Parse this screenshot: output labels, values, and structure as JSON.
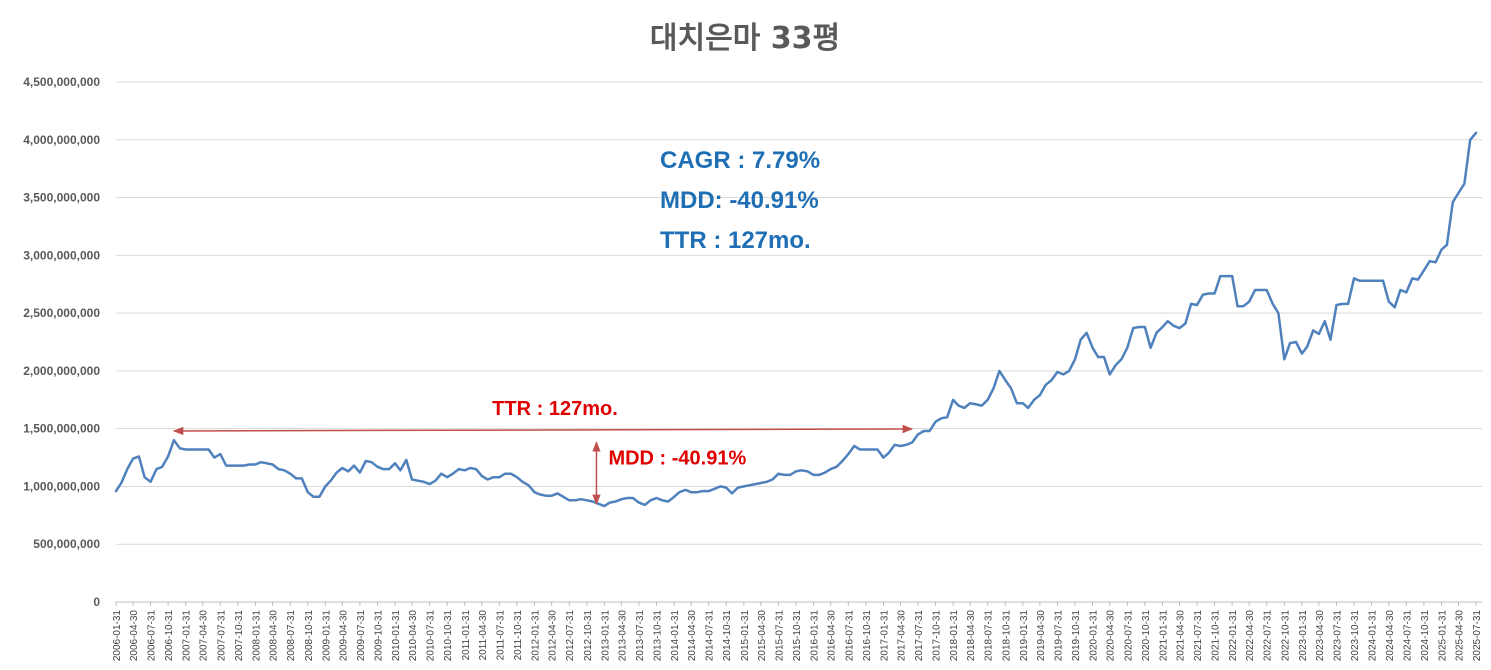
{
  "chart_data": {
    "type": "line",
    "title": "대치은마 33평",
    "xlabel": "",
    "ylabel": "",
    "ylim": [
      0,
      4500000000
    ],
    "y_ticks": [
      "0",
      "500,000,000",
      "1,000,000,000",
      "1,500,000,000",
      "2,000,000,000",
      "2,500,000,000",
      "3,000,000,000",
      "3,500,000,000",
      "4,000,000,000",
      "4,500,000,000"
    ],
    "y_tick_values": [
      0,
      500000000,
      1000000000,
      1500000000,
      2000000000,
      2500000000,
      3000000000,
      3500000000,
      4000000000,
      4500000000
    ],
    "x_ticks": [
      "2006-01-31",
      "2006-04-30",
      "2006-07-31",
      "2006-10-31",
      "2007-01-31",
      "2007-04-30",
      "2007-07-31",
      "2007-10-31",
      "2008-01-31",
      "2008-04-30",
      "2008-07-31",
      "2008-10-31",
      "2009-01-31",
      "2009-04-30",
      "2009-07-31",
      "2009-10-31",
      "2010-01-31",
      "2010-04-30",
      "2010-07-31",
      "2010-10-31",
      "2011-01-31",
      "2011-04-30",
      "2011-07-31",
      "2011-10-31",
      "2012-01-31",
      "2012-04-30",
      "2012-07-31",
      "2012-10-31",
      "2013-01-31",
      "2013-04-30",
      "2013-07-31",
      "2013-10-31",
      "2014-01-31",
      "2014-04-30",
      "2014-07-31",
      "2014-10-31",
      "2015-01-31",
      "2015-04-30",
      "2015-07-31",
      "2015-10-31",
      "2016-01-31",
      "2016-04-30",
      "2016-07-31",
      "2016-10-31",
      "2017-01-31",
      "2017-04-30",
      "2017-07-31",
      "2017-10-31",
      "2018-01-31",
      "2018-04-30",
      "2018-07-31",
      "2018-10-31",
      "2019-01-31",
      "2019-04-30",
      "2019-07-31",
      "2019-10-31",
      "2020-01-31",
      "2020-04-30",
      "2020-07-31",
      "2020-10-31",
      "2021-01-31",
      "2021-04-30",
      "2021-07-31",
      "2021-10-31",
      "2022-01-31",
      "2022-04-30",
      "2022-07-31",
      "2022-10-31",
      "2023-01-31",
      "2023-04-30",
      "2023-07-31",
      "2023-10-31",
      "2024-01-31",
      "2024-04-30",
      "2024-07-31",
      "2024-10-31",
      "2025-01-31",
      "2025-04-30",
      "2025-07-31"
    ],
    "x_start": "2006-01-31",
    "x_end": "2025-08-31",
    "grid": true,
    "line_color": "#4F81BD",
    "series": [
      {
        "name": "",
        "values": [
          960000000,
          1030000000,
          1150000000,
          1240000000,
          1260000000,
          1080000000,
          1040000000,
          1150000000,
          1170000000,
          1260000000,
          1400000000,
          1330000000,
          1320000000,
          1320000000,
          1320000000,
          1320000000,
          1320000000,
          1250000000,
          1280000000,
          1180000000,
          1180000000,
          1180000000,
          1180000000,
          1190000000,
          1190000000,
          1210000000,
          1200000000,
          1190000000,
          1150000000,
          1140000000,
          1110000000,
          1070000000,
          1070000000,
          950000000,
          910000000,
          910000000,
          1000000000,
          1050000000,
          1120000000,
          1160000000,
          1130000000,
          1180000000,
          1120000000,
          1220000000,
          1210000000,
          1170000000,
          1150000000,
          1150000000,
          1200000000,
          1140000000,
          1230000000,
          1060000000,
          1050000000,
          1040000000,
          1020000000,
          1050000000,
          1110000000,
          1080000000,
          1110000000,
          1150000000,
          1140000000,
          1160000000,
          1150000000,
          1090000000,
          1060000000,
          1080000000,
          1080000000,
          1110000000,
          1110000000,
          1080000000,
          1040000000,
          1010000000,
          950000000,
          930000000,
          920000000,
          920000000,
          940000000,
          910000000,
          880000000,
          880000000,
          890000000,
          880000000,
          870000000,
          850000000,
          830000000,
          860000000,
          870000000,
          890000000,
          900000000,
          900000000,
          860000000,
          840000000,
          880000000,
          900000000,
          880000000,
          870000000,
          910000000,
          950000000,
          970000000,
          950000000,
          950000000,
          960000000,
          960000000,
          980000000,
          1000000000,
          990000000,
          940000000,
          990000000,
          1000000000,
          1010000000,
          1020000000,
          1030000000,
          1040000000,
          1060000000,
          1110000000,
          1100000000,
          1100000000,
          1130000000,
          1140000000,
          1130000000,
          1100000000,
          1100000000,
          1120000000,
          1150000000,
          1170000000,
          1220000000,
          1280000000,
          1350000000,
          1320000000,
          1320000000,
          1320000000,
          1320000000,
          1250000000,
          1290000000,
          1360000000,
          1350000000,
          1360000000,
          1380000000,
          1450000000,
          1480000000,
          1480000000,
          1560000000,
          1590000000,
          1600000000,
          1750000000,
          1700000000,
          1680000000,
          1720000000,
          1710000000,
          1700000000,
          1750000000,
          1850000000,
          2000000000,
          1920000000,
          1850000000,
          1720000000,
          1720000000,
          1680000000,
          1750000000,
          1790000000,
          1880000000,
          1920000000,
          1990000000,
          1970000000,
          2000000000,
          2100000000,
          2270000000,
          2330000000,
          2200000000,
          2120000000,
          2120000000,
          1970000000,
          2050000000,
          2100000000,
          2200000000,
          2370000000,
          2380000000,
          2380000000,
          2200000000,
          2330000000,
          2380000000,
          2430000000,
          2390000000,
          2370000000,
          2410000000,
          2580000000,
          2570000000,
          2660000000,
          2670000000,
          2670000000,
          2820000000,
          2820000000,
          2820000000,
          2560000000,
          2560000000,
          2600000000,
          2700000000,
          2700000000,
          2700000000,
          2580000000,
          2500000000,
          2100000000,
          2240000000,
          2250000000,
          2150000000,
          2210000000,
          2350000000,
          2320000000,
          2430000000,
          2270000000,
          2570000000,
          2580000000,
          2580000000,
          2800000000,
          2780000000,
          2780000000,
          2780000000,
          2780000000,
          2780000000,
          2600000000,
          2550000000,
          2700000000,
          2680000000,
          2800000000,
          2790000000,
          2870000000,
          2950000000,
          2940000000,
          3050000000,
          3090000000,
          3460000000,
          3540000000,
          3620000000,
          4000000000,
          4060000000
        ]
      }
    ],
    "stats": [
      "CAGR : 7.79%",
      "MDD: -40.91%",
      "TTR : 127mo."
    ],
    "annotations": [
      {
        "label": "TTR : 127mo.",
        "kind": "horizontal-arrow",
        "from_date": "2006-11-30",
        "to_date": "2017-06-30",
        "y_value": 1480000000
      },
      {
        "label": "MDD : -40.91%",
        "kind": "vertical-arrow",
        "date": "2012-12-31",
        "from_value": 830000000,
        "to_value": 1400000000
      }
    ],
    "annotation_color": "#E00000",
    "stats_color": "#1F6FB5"
  }
}
